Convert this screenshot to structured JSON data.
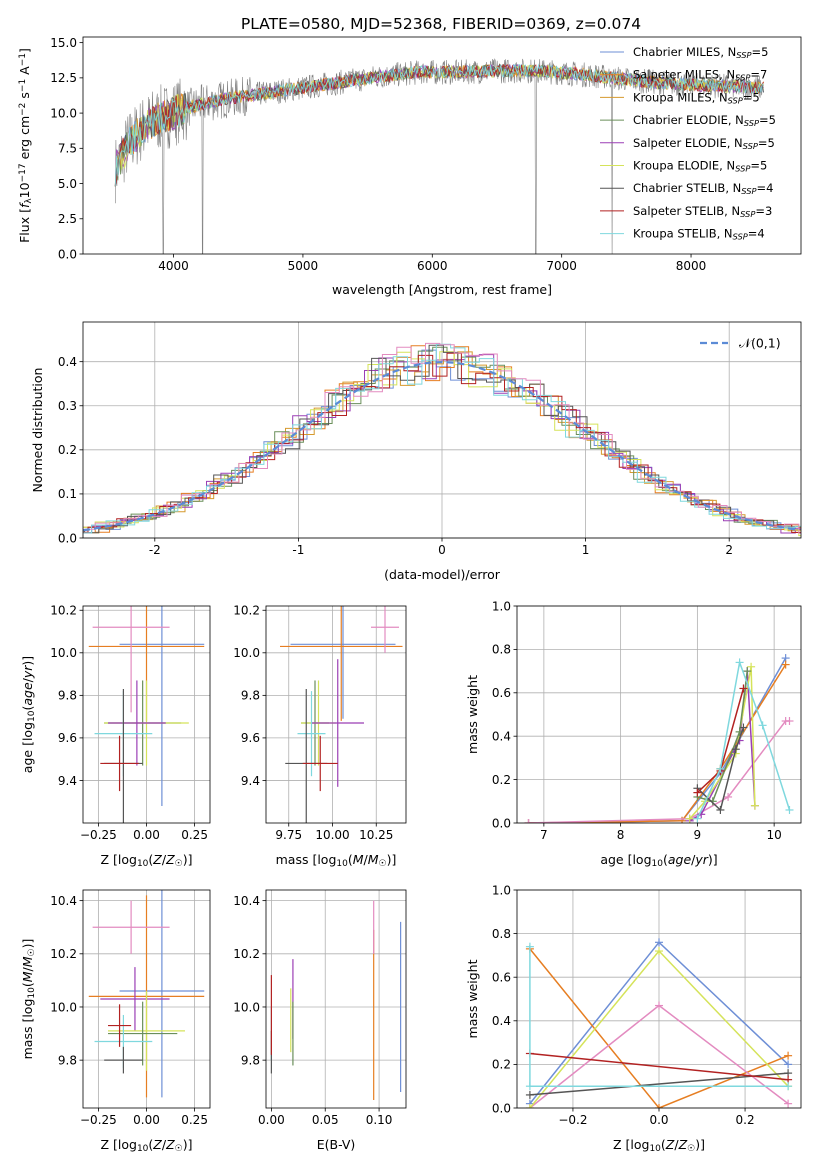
{
  "figure_title": "PLATE=0580, MJD=52368, FIBERID=0369, z=0.074",
  "colors": {
    "chabrier_miles": "#6e8fd6",
    "salpeter_miles": "#e67e22",
    "kroupa_miles": "#d69a2e",
    "chabrier_elodie": "#6a8f5a",
    "salpeter_elodie": "#9b3fb5",
    "kroupa_elodie": "#d5e35a",
    "chabrier_stelib": "#555555",
    "salpeter_stelib": "#b22222",
    "kroupa_stelib": "#7fd8de",
    "extra_pink": "#e38bc0",
    "normal": "#5b8bd6",
    "data": "#808080"
  },
  "chart_data": [
    {
      "id": "spectrum",
      "type": "line",
      "title": "PLATE=0580, MJD=52368, FIBERID=0369, z=0.074",
      "xlabel": "wavelength [Angstrom, rest frame]",
      "ylabel": "Flux [f_λ 10^-17 erg cm^-2 s^-1 A^-1]",
      "xlim": [
        3300,
        8850
      ],
      "ylim": [
        0,
        15.4
      ],
      "xticks": [
        4000,
        5000,
        6000,
        7000,
        8000
      ],
      "yticks": [
        0.0,
        2.5,
        5.0,
        7.5,
        10.0,
        12.5,
        15.0
      ],
      "legend_location": "upper right",
      "series": [
        {
          "name": "Chabrier MILES, N_SSP=5",
          "color_key": "chabrier_miles"
        },
        {
          "name": "Salpeter MILES, N_SSP=7",
          "color_key": "salpeter_miles"
        },
        {
          "name": "Kroupa MILES, N_SSP=5",
          "color_key": "kroupa_miles"
        },
        {
          "name": "Chabrier ELODIE, N_SSP=5",
          "color_key": "chabrier_elodie"
        },
        {
          "name": "Salpeter ELODIE, N_SSP=5",
          "color_key": "salpeter_elodie"
        },
        {
          "name": "Kroupa ELODIE, N_SSP=5",
          "color_key": "kroupa_elodie"
        },
        {
          "name": "Chabrier STELIB, N_SSP=4",
          "color_key": "chabrier_stelib"
        },
        {
          "name": "Salpeter STELIB, N_SSP=3",
          "color_key": "salpeter_stelib"
        },
        {
          "name": "Kroupa STELIB, N_SSP=4",
          "color_key": "kroupa_stelib"
        }
      ],
      "continuum": {
        "x": [
          3550,
          3650,
          3750,
          3850,
          3950,
          4050,
          4200,
          4400,
          4700,
          5000,
          5300,
          5600,
          5900,
          6200,
          6500,
          6800,
          7100,
          7400,
          7700,
          8000,
          8300,
          8550
        ],
        "y": [
          6.0,
          7.8,
          8.8,
          9.5,
          9.8,
          10.2,
          10.6,
          11.0,
          11.4,
          11.8,
          12.2,
          12.6,
          12.9,
          12.9,
          13.0,
          13.0,
          12.8,
          12.5,
          12.2,
          12.0,
          11.9,
          11.8
        ]
      },
      "dips": [
        {
          "x": 3920,
          "y": 0.0
        },
        {
          "x": 4225,
          "y": 0.0
        },
        {
          "x": 6800,
          "y": 0.0
        },
        {
          "x": 7390,
          "y": 0.0
        }
      ]
    },
    {
      "id": "residuals",
      "type": "histogram",
      "xlabel": "(data-model)/error",
      "ylabel": "Normed distribution",
      "xlim": [
        -2.5,
        2.5
      ],
      "ylim": [
        0,
        0.49
      ],
      "xticks": [
        -2,
        -1,
        0,
        1,
        2
      ],
      "yticks": [
        0.0,
        0.1,
        0.2,
        0.3,
        0.4
      ],
      "legend": [
        {
          "name": "𝒩(0,1)",
          "color_key": "normal",
          "style": "dashed"
        }
      ],
      "legend_location": "upper right",
      "bin_width": 0.1,
      "grid": true
    },
    {
      "id": "age_vs_Z",
      "type": "errorbar",
      "xlabel": "Z [log10(Z/Z☉)]",
      "ylabel": "age [log10(age/yr)]",
      "xlim": [
        -0.33,
        0.33
      ],
      "ylim": [
        9.2,
        10.22
      ],
      "xticks": [
        -0.25,
        0.0,
        0.25
      ],
      "xticklabels": [
        "−0.25",
        "0.00",
        "0.25"
      ],
      "yticks": [
        9.4,
        9.6,
        9.8,
        10.0,
        10.2
      ],
      "grid": true,
      "points": [
        {
          "color_key": "chabrier_miles",
          "x": 0.08,
          "y": 10.04,
          "xerr": 0.22,
          "yerr": 0.76
        },
        {
          "color_key": "salpeter_miles",
          "x": 0.0,
          "y": 10.03,
          "xerr": 0.3,
          "yerr": 0.35
        },
        {
          "color_key": "extra_pink",
          "x": -0.08,
          "y": 10.12,
          "xerr": 0.2,
          "yerr": 0.4
        },
        {
          "color_key": "chabrier_elodie",
          "x": -0.02,
          "y": 9.67,
          "xerr": 0.2,
          "yerr": 0.2
        },
        {
          "color_key": "kroupa_elodie",
          "x": 0.0,
          "y": 9.67,
          "xerr": 0.22,
          "yerr": 0.2
        },
        {
          "color_key": "salpeter_elodie",
          "x": -0.05,
          "y": 9.67,
          "xerr": 0.15,
          "yerr": 0.2
        },
        {
          "color_key": "kroupa_stelib",
          "x": -0.12,
          "y": 9.62,
          "xerr": 0.15,
          "yerr": 0.2
        },
        {
          "color_key": "chabrier_stelib",
          "x": -0.12,
          "y": 9.48,
          "xerr": 0.1,
          "yerr": 0.35
        },
        {
          "color_key": "salpeter_stelib",
          "x": -0.14,
          "y": 9.48,
          "xerr": 0.1,
          "yerr": 0.13
        }
      ]
    },
    {
      "id": "age_vs_mass",
      "type": "errorbar",
      "xlabel": "mass [log10(M/M☉)]",
      "xlim": [
        9.62,
        10.42
      ],
      "ylim": [
        9.2,
        10.22
      ],
      "xticks": [
        9.75,
        10.0,
        10.25
      ],
      "xticklabels": [
        "9.75",
        "10.00",
        "10.25"
      ],
      "yticks": [
        9.4,
        9.6,
        9.8,
        10.0,
        10.2
      ],
      "grid": true,
      "points": [
        {
          "color_key": "chabrier_miles",
          "x": 10.06,
          "y": 10.04,
          "xerr": 0.3,
          "yerr": 0.35
        },
        {
          "color_key": "salpeter_miles",
          "x": 10.05,
          "y": 10.03,
          "xerr": 0.35,
          "yerr": 0.35
        },
        {
          "color_key": "extra_pink",
          "x": 10.3,
          "y": 10.12,
          "xerr": 0.08,
          "yerr": 0.12
        },
        {
          "color_key": "chabrier_elodie",
          "x": 9.9,
          "y": 9.67,
          "xerr": 0.08,
          "yerr": 0.2
        },
        {
          "color_key": "kroupa_elodie",
          "x": 9.92,
          "y": 9.67,
          "xerr": 0.1,
          "yerr": 0.2
        },
        {
          "color_key": "salpeter_elodie",
          "x": 10.03,
          "y": 9.67,
          "xerr": 0.15,
          "yerr": 0.3
        },
        {
          "color_key": "kroupa_stelib",
          "x": 9.88,
          "y": 9.62,
          "xerr": 0.08,
          "yerr": 0.2
        },
        {
          "color_key": "chabrier_stelib",
          "x": 9.85,
          "y": 9.48,
          "xerr": 0.12,
          "yerr": 0.35
        },
        {
          "color_key": "salpeter_stelib",
          "x": 9.93,
          "y": 9.48,
          "xerr": 0.1,
          "yerr": 0.13
        }
      ]
    },
    {
      "id": "massweight_vs_age",
      "type": "line",
      "xlabel": "age [log10(age/yr)]",
      "ylabel": "mass weight",
      "xlim": [
        6.65,
        10.35
      ],
      "ylim": [
        0,
        1.0
      ],
      "xticks": [
        7,
        8,
        9,
        10
      ],
      "yticks": [
        0.0,
        0.2,
        0.4,
        0.6,
        0.8,
        1.0
      ],
      "grid": true,
      "series": [
        {
          "color_key": "chabrier_miles",
          "x": [
            6.8,
            8.8,
            9.3,
            10.15
          ],
          "y": [
            0.0,
            0.01,
            0.23,
            0.76
          ]
        },
        {
          "color_key": "salpeter_miles",
          "x": [
            6.8,
            8.8,
            9.3,
            10.15
          ],
          "y": [
            0.0,
            0.01,
            0.25,
            0.73
          ]
        },
        {
          "color_key": "extra_pink",
          "x": [
            6.8,
            8.9,
            9.4,
            10.15,
            10.2
          ],
          "y": [
            0.0,
            0.02,
            0.12,
            0.47,
            0.47
          ]
        },
        {
          "color_key": "salpeter_elodie",
          "x": [
            8.9,
            9.05,
            9.55,
            9.65,
            9.75
          ],
          "y": [
            0.01,
            0.04,
            0.38,
            0.7,
            0.08
          ]
        },
        {
          "color_key": "kroupa_elodie",
          "x": [
            8.9,
            9.1,
            9.5,
            9.7,
            9.75
          ],
          "y": [
            0.02,
            0.1,
            0.32,
            0.72,
            0.08
          ]
        },
        {
          "color_key": "chabrier_elodie",
          "x": [
            9.0,
            9.2,
            9.55,
            9.65
          ],
          "y": [
            0.12,
            0.1,
            0.42,
            0.7
          ]
        },
        {
          "color_key": "chabrier_stelib",
          "x": [
            9.0,
            9.3,
            9.5,
            9.6
          ],
          "y": [
            0.16,
            0.06,
            0.34,
            0.44
          ]
        },
        {
          "color_key": "salpeter_stelib",
          "x": [
            9.0,
            9.3,
            9.6
          ],
          "y": [
            0.14,
            0.24,
            0.62
          ]
        },
        {
          "color_key": "kroupa_stelib",
          "x": [
            9.0,
            9.3,
            9.55,
            9.85,
            10.2
          ],
          "y": [
            0.02,
            0.25,
            0.74,
            0.45,
            0.06
          ]
        }
      ]
    },
    {
      "id": "mass_vs_Z",
      "type": "errorbar",
      "xlabel": "Z [log10(Z/Z☉)]",
      "ylabel": "mass [log10(M/M☉)]",
      "xlim": [
        -0.33,
        0.33
      ],
      "ylim": [
        9.62,
        10.44
      ],
      "xticks": [
        -0.25,
        0.0,
        0.25
      ],
      "xticklabels": [
        "−0.25",
        "0.00",
        "0.25"
      ],
      "yticks": [
        9.8,
        10.0,
        10.2,
        10.4
      ],
      "grid": true,
      "points": [
        {
          "color_key": "chabrier_miles",
          "x": 0.08,
          "y": 10.06,
          "xerr": 0.22,
          "yerr": 0.4
        },
        {
          "color_key": "salpeter_miles",
          "x": 0.0,
          "y": 10.04,
          "xerr": 0.3,
          "yerr": 0.38
        },
        {
          "color_key": "extra_pink",
          "x": -0.08,
          "y": 10.3,
          "xerr": 0.2,
          "yerr": 0.1
        },
        {
          "color_key": "salpeter_elodie",
          "x": -0.06,
          "y": 10.03,
          "xerr": 0.18,
          "yerr": 0.12
        },
        {
          "color_key": "kroupa_elodie",
          "x": 0.0,
          "y": 9.91,
          "xerr": 0.2,
          "yerr": 0.15
        },
        {
          "color_key": "chabrier_elodie",
          "x": -0.02,
          "y": 9.9,
          "xerr": 0.18,
          "yerr": 0.12
        },
        {
          "color_key": "kroupa_stelib",
          "x": -0.12,
          "y": 9.87,
          "xerr": 0.15,
          "yerr": 0.1
        },
        {
          "color_key": "chabrier_stelib",
          "x": -0.12,
          "y": 9.8,
          "xerr": 0.1,
          "yerr": 0.05
        },
        {
          "color_key": "salpeter_stelib",
          "x": -0.14,
          "y": 9.93,
          "xerr": 0.06,
          "yerr": 0.08
        }
      ]
    },
    {
      "id": "mass_vs_ebv",
      "type": "errorbar",
      "xlabel": "E(B-V)",
      "xlim": [
        -0.005,
        0.125
      ],
      "ylim": [
        9.62,
        10.44
      ],
      "xticks": [
        0.0,
        0.05,
        0.1
      ],
      "xticklabels": [
        "0.00",
        "0.05",
        "0.10"
      ],
      "yticks": [
        9.8,
        10.0,
        10.2,
        10.4
      ],
      "grid": true,
      "points": [
        {
          "color_key": "chabrier_miles",
          "x": 0.12,
          "y": 10.0,
          "xerr": 0.0,
          "yerr": 0.32
        },
        {
          "color_key": "salpeter_miles",
          "x": 0.095,
          "y": 9.97,
          "xerr": 0.0,
          "yerr": 0.32
        },
        {
          "color_key": "extra_pink",
          "x": 0.095,
          "y": 10.3,
          "xerr": 0.0,
          "yerr": 0.1
        },
        {
          "color_key": "salpeter_elodie",
          "x": 0.02,
          "y": 10.03,
          "xerr": 0.0,
          "yerr": 0.15
        },
        {
          "color_key": "kroupa_elodie",
          "x": 0.018,
          "y": 9.95,
          "xerr": 0.0,
          "yerr": 0.12
        },
        {
          "color_key": "chabrier_elodie",
          "x": 0.02,
          "y": 9.9,
          "xerr": 0.0,
          "yerr": 0.12
        },
        {
          "color_key": "kroupa_stelib",
          "x": 0.0,
          "y": 9.9,
          "xerr": 0.0,
          "yerr": 0.1
        },
        {
          "color_key": "chabrier_stelib",
          "x": 0.0,
          "y": 9.83,
          "xerr": 0.0,
          "yerr": 0.08
        },
        {
          "color_key": "salpeter_stelib",
          "x": 0.0,
          "y": 9.97,
          "xerr": 0.0,
          "yerr": 0.15
        }
      ]
    },
    {
      "id": "massweight_vs_Z",
      "type": "line",
      "xlabel": "Z [log10(Z/Z☉)]",
      "ylabel": "mass weight",
      "xlim": [
        -0.33,
        0.33
      ],
      "ylim": [
        0,
        1.0
      ],
      "xticks": [
        -0.2,
        0.0,
        0.2
      ],
      "xticklabels": [
        "−0.2",
        "0.0",
        "0.2"
      ],
      "yticks": [
        0.0,
        0.2,
        0.4,
        0.6,
        0.8,
        1.0
      ],
      "grid": true,
      "series": [
        {
          "color_key": "chabrier_miles",
          "x": [
            -0.3,
            0.0,
            0.3
          ],
          "y": [
            0.02,
            0.76,
            0.2
          ]
        },
        {
          "color_key": "salpeter_miles",
          "x": [
            -0.3,
            0.0,
            0.3
          ],
          "y": [
            0.73,
            0.0,
            0.24
          ]
        },
        {
          "color_key": "extra_pink",
          "x": [
            -0.3,
            0.0,
            0.3
          ],
          "y": [
            0.0,
            0.47,
            0.02
          ]
        },
        {
          "color_key": "kroupa_elodie",
          "x": [
            -0.3,
            0.0,
            0.3
          ],
          "y": [
            0.0,
            0.72,
            0.1
          ]
        },
        {
          "color_key": "chabrier_stelib",
          "x": [
            -0.3,
            0.3
          ],
          "y": [
            0.06,
            0.16
          ]
        },
        {
          "color_key": "salpeter_stelib",
          "x": [
            -0.3,
            0.3
          ],
          "y": [
            0.25,
            0.13
          ]
        },
        {
          "color_key": "kroupa_stelib",
          "x": [
            -0.3,
            -0.3,
            0.3
          ],
          "y": [
            0.74,
            0.1,
            0.1
          ]
        }
      ]
    }
  ]
}
